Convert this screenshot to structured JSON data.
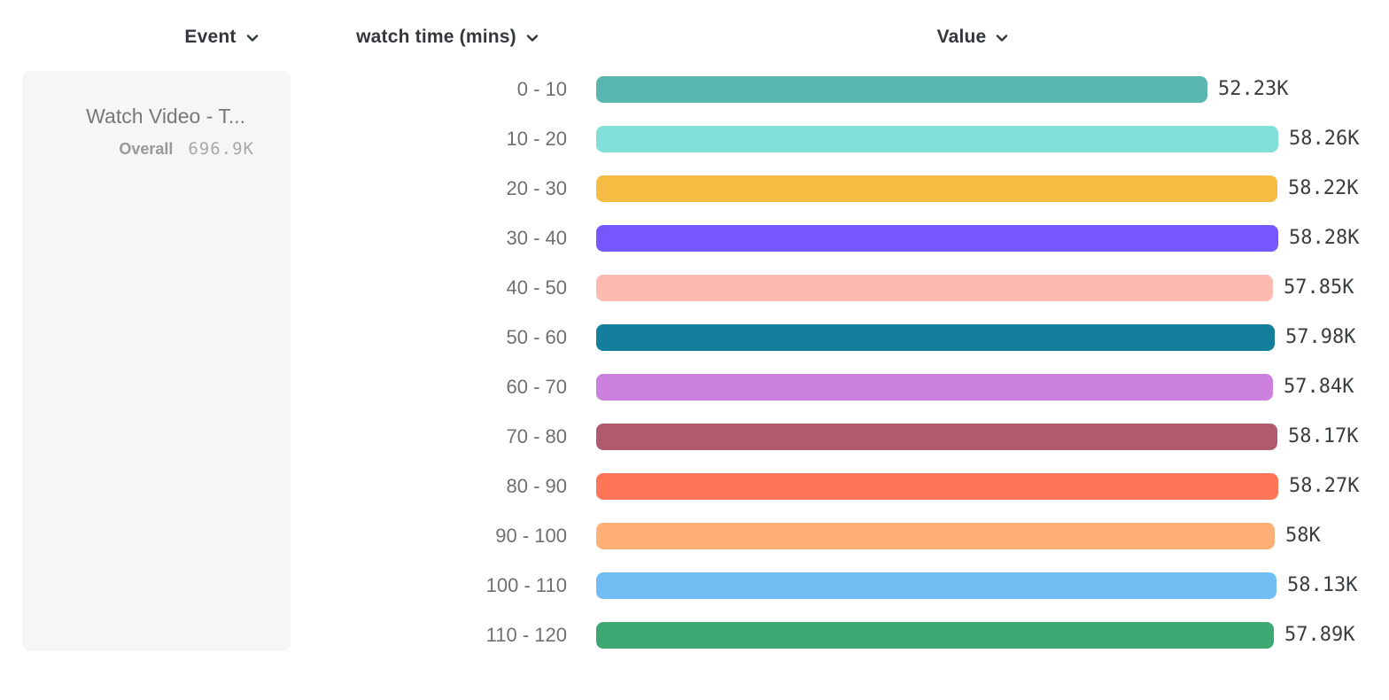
{
  "header": {
    "columns": [
      {
        "label": "Event",
        "icon": "chevron-down"
      },
      {
        "label": "watch time (mins)",
        "icon": "chevron-down"
      },
      {
        "label": "Value",
        "icon": "chevron-down"
      }
    ]
  },
  "legend": {
    "event_name": "Watch Video - T...",
    "overall_label": "Overall",
    "overall_value": "696.9K"
  },
  "chart_data": {
    "type": "bar",
    "orientation": "horizontal",
    "title": "",
    "series_name": "watch time (mins)",
    "categories": [
      "0 - 10",
      "10 - 20",
      "20 - 30",
      "30 - 40",
      "40 - 50",
      "50 - 60",
      "60 - 70",
      "70 - 80",
      "80 - 90",
      "90 - 100",
      "100 - 110",
      "110 - 120"
    ],
    "values": [
      52230,
      58260,
      58220,
      58280,
      57850,
      57980,
      57840,
      58170,
      58270,
      58000,
      58130,
      57890
    ],
    "value_labels": [
      "52.23K",
      "58.26K",
      "58.22K",
      "58.28K",
      "57.85K",
      "57.98K",
      "57.84K",
      "58.17K",
      "58.27K",
      "58K",
      "58.13K",
      "57.89K"
    ],
    "colors": [
      "#5ab7b0",
      "#81e0d7",
      "#f6bb42",
      "#7656fd",
      "#fdbab1",
      "#137f9d",
      "#ca80dc",
      "#b05a6e",
      "#fe7558",
      "#feb077",
      "#72bdf4",
      "#3ea873"
    ],
    "xlim": [
      0,
      58280
    ],
    "grid": false,
    "legend_position": "left",
    "value_label_position": "right-of-bar"
  }
}
